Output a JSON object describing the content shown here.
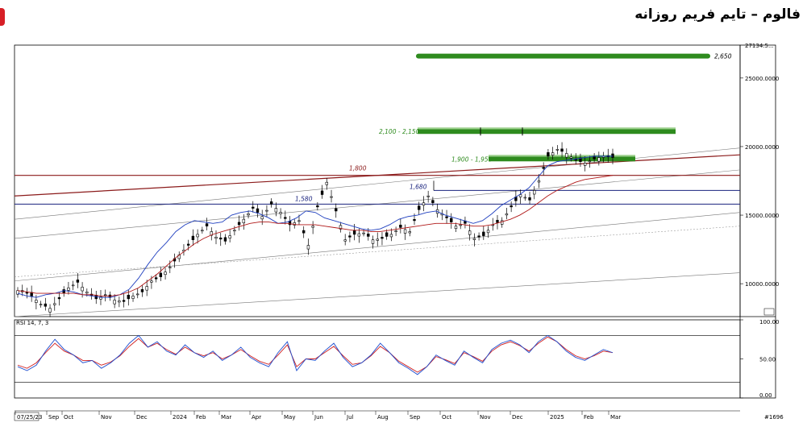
{
  "title": "فالوم – تایم فریم روزانه",
  "colors": {
    "up": "#000000",
    "down": "#000000",
    "ma_fast": "#1f3fbf",
    "ma_slow": "#b01818",
    "resistance": "#8b1a1a",
    "support": "#1a237e",
    "target": "#2e8b1e",
    "rsi_blue": "#1f4fd0",
    "rsi_red": "#d02020"
  },
  "chart_data": [
    {
      "type": "line",
      "title": "",
      "xlabel": "",
      "ylabel": "",
      "x_ticks": [
        "07/25/23",
        "Sep",
        "Oct",
        "Nov",
        "Dec",
        "2024",
        "Feb",
        "Mar",
        "Apr",
        "May",
        "Jun",
        "Jul",
        "Aug",
        "Sep",
        "Oct",
        "Nov",
        "Dec",
        "2025",
        "Feb",
        "Mar"
      ],
      "y_ticks": [
        "25000.0000",
        "20000.0000",
        "15000.0000",
        "10000.0000"
      ],
      "ylim": [
        7600,
        27400
      ],
      "bottom_right_label": "#1696",
      "top_right_value": "27134.5...",
      "series": [
        {
          "values": [
            9500,
            9100,
            8500,
            8200,
            8900,
            9700,
            10100,
            9400,
            8900,
            9200,
            8800,
            8700,
            9100,
            9400,
            10200,
            10500,
            11200,
            12100,
            12800,
            13600,
            14200,
            13400,
            13100,
            13900,
            14700,
            15500,
            14900,
            15800,
            15200,
            14300,
            14600,
            12800,
            15600,
            17400,
            15300,
            13200,
            13600,
            13700,
            13200,
            13300,
            13600,
            14100,
            13800,
            15400,
            16400,
            15400,
            14800,
            14200,
            14400,
            13300,
            13500,
            14300,
            14600,
            15600,
            16500,
            16100,
            17500,
            19300,
            19800,
            19500,
            19000,
            18800,
            19100,
            19300,
            19200
          ]
        },
        {
          "values": [
            9300,
            9100,
            9000,
            9200,
            9300,
            9500,
            9400,
            9200,
            9100,
            9000,
            9000,
            9200,
            9600,
            10400,
            11400,
            12300,
            13000,
            13800,
            14300,
            14600,
            14500,
            14400,
            14500,
            15000,
            15200,
            15300,
            15100,
            14800,
            14400,
            14500,
            14800,
            15300,
            15200,
            14800,
            14600,
            14400,
            14200,
            14000,
            13900,
            14000,
            14300,
            14700,
            14900,
            15000,
            15200,
            15300,
            15000,
            14800,
            14600,
            14400,
            14600,
            15100,
            15700,
            16100,
            16500,
            17000,
            17800,
            18600,
            18900,
            19000,
            19100,
            19200,
            19300,
            19300,
            19300
          ]
        },
        {
          "values": [
            9500,
            9400,
            9300,
            9300,
            9300,
            9300,
            9300,
            9200,
            9200,
            9100,
            9100,
            9200,
            9400,
            9700,
            10200,
            10700,
            11300,
            11900,
            12400,
            12900,
            13300,
            13600,
            13800,
            14000,
            14200,
            14400,
            14500,
            14500,
            14400,
            14400,
            14300,
            14300,
            14300,
            14200,
            14100,
            14000,
            13900,
            13900,
            13800,
            13800,
            13900,
            14000,
            14100,
            14200,
            14300,
            14400,
            14400,
            14400,
            14300,
            14200,
            14200,
            14300,
            14500,
            14700,
            15000,
            15400,
            15900,
            16400,
            16800,
            17100,
            17400,
            17600,
            17700,
            17800,
            17900
          ]
        }
      ],
      "levels": [
        {
          "label": "2,650",
          "value": 26600,
          "kind": "target"
        },
        {
          "label": "2,100 - 2,150",
          "value": 21100,
          "kind": "target"
        },
        {
          "label": "1,900 - 1,950",
          "value": 19100,
          "kind": "target"
        },
        {
          "label": "1,800",
          "value": 17900,
          "kind": "resistance"
        },
        {
          "label": "1,680",
          "value": 16800,
          "kind": "support"
        },
        {
          "label": "1,580",
          "value": 15800,
          "kind": "support"
        }
      ]
    },
    {
      "type": "line",
      "title": "RSI 14, 7, 3",
      "y_ticks": [
        "100.00",
        "50.00",
        "0.00"
      ],
      "ylim": [
        0,
        100
      ],
      "series": [
        {
          "values": [
            40,
            35,
            42,
            60,
            75,
            62,
            55,
            45,
            48,
            38,
            45,
            55,
            70,
            80,
            65,
            72,
            60,
            55,
            68,
            58,
            52,
            60,
            48,
            55,
            65,
            52,
            45,
            40,
            58,
            72,
            35,
            50,
            48,
            60,
            70,
            52,
            40,
            45,
            55,
            70,
            58,
            45,
            38,
            30,
            40,
            55,
            48,
            42,
            60,
            52,
            45,
            62,
            70,
            74,
            68,
            58,
            72,
            80,
            72,
            60,
            52,
            48,
            55,
            62,
            58
          ]
        },
        {
          "values": [
            42,
            38,
            45,
            58,
            70,
            60,
            55,
            48,
            48,
            42,
            46,
            54,
            66,
            76,
            65,
            70,
            62,
            56,
            65,
            58,
            54,
            58,
            50,
            55,
            62,
            54,
            47,
            43,
            55,
            68,
            40,
            50,
            50,
            58,
            66,
            54,
            43,
            45,
            54,
            66,
            58,
            47,
            40,
            33,
            40,
            53,
            49,
            44,
            58,
            53,
            47,
            60,
            68,
            72,
            67,
            60,
            70,
            78,
            72,
            62,
            54,
            50,
            54,
            60,
            58
          ]
        }
      ],
      "levels": [
        80,
        20
      ]
    }
  ]
}
